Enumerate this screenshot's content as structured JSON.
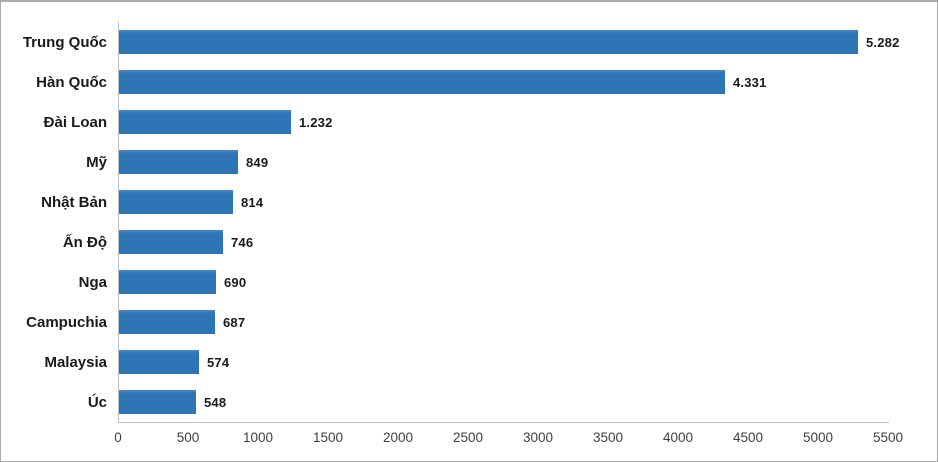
{
  "chart_data": {
    "type": "bar",
    "orientation": "horizontal",
    "categories": [
      "Trung Quốc",
      "Hàn Quốc",
      "Đài Loan",
      "Mỹ",
      "Nhật Bản",
      "Ấn Độ",
      "Nga",
      "Campuchia",
      "Malaysia",
      "Úc"
    ],
    "values": [
      5282,
      4331,
      1232,
      849,
      814,
      746,
      690,
      687,
      574,
      548
    ],
    "value_labels": [
      "5.282",
      "4.331",
      "1.232",
      "849",
      "814",
      "746",
      "690",
      "687",
      "574",
      "548"
    ],
    "xlim": [
      0,
      5500
    ],
    "x_tick_values": [
      0,
      500,
      1000,
      1500,
      2000,
      2500,
      3000,
      3500,
      4000,
      4500,
      5000,
      5500
    ],
    "x_tick_labels": [
      "0",
      "500",
      "1000",
      "1500",
      "2000",
      "2500",
      "3000",
      "3500",
      "4000",
      "4500",
      "5000",
      "5500"
    ],
    "grid": false,
    "legend": "none",
    "data_labels_position": "outside-end",
    "bar_color": "#2E75B6"
  },
  "colors": {
    "bar": "#2E75B6",
    "axis_line": "#BFBFBF",
    "category_text": "#1A1A1A",
    "value_text": "#1A1A1A",
    "tick_text": "#3F3F3F",
    "frame_border": "#ABABAB",
    "background": "#FFFFFF"
  }
}
